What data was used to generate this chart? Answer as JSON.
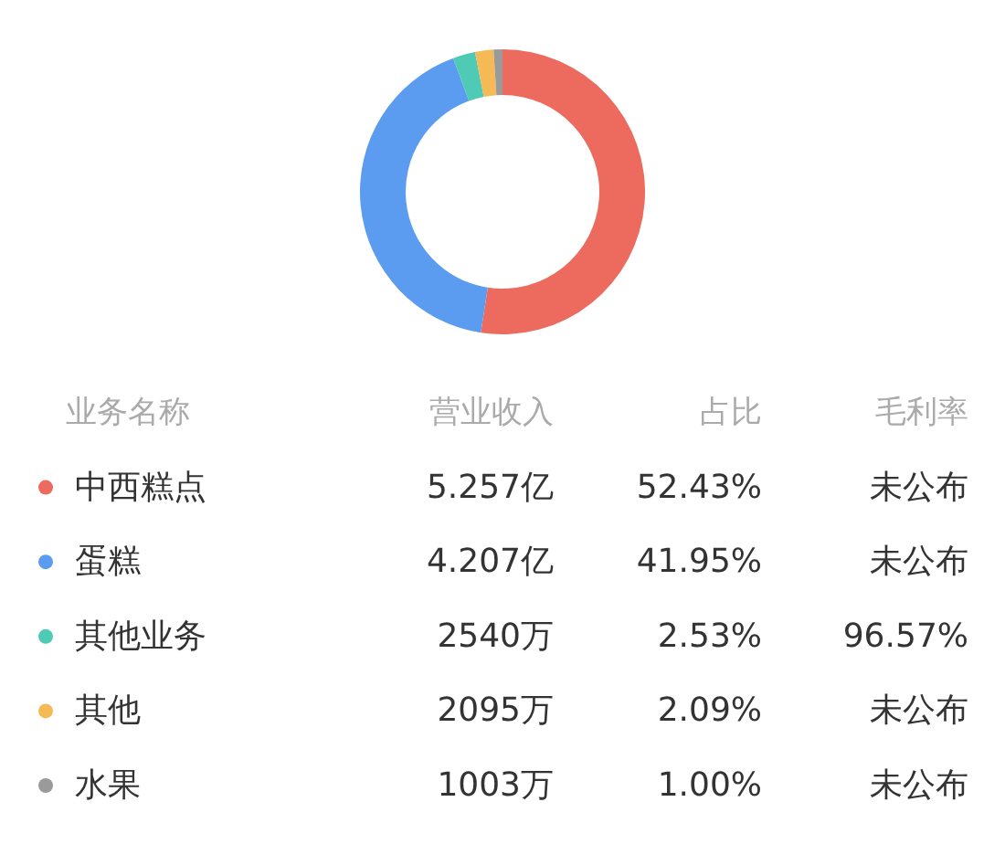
{
  "chart_data": {
    "type": "donut",
    "legend_title": "业务名称",
    "categories": [
      "中西糕点",
      "蛋糕",
      "其他业务",
      "其他",
      "水果"
    ],
    "values": [
      52.43,
      41.95,
      2.53,
      2.09,
      1.0
    ],
    "value_labels": [
      "52.43%",
      "41.95%",
      "2.53%",
      "2.09%",
      "1.00%"
    ],
    "colors": [
      "#ec6b5e",
      "#5b9bf0",
      "#4ecab5",
      "#f5b955",
      "#9a9a9a"
    ],
    "legend": "bottom",
    "annotations": [
      "营业收入",
      "占比",
      "毛利率",
      "5.257亿",
      "未公布",
      "4.207亿",
      "未公布",
      "2540万",
      "96.57%",
      "2095万",
      "未公布",
      "1003万",
      "未公布"
    ]
  }
}
